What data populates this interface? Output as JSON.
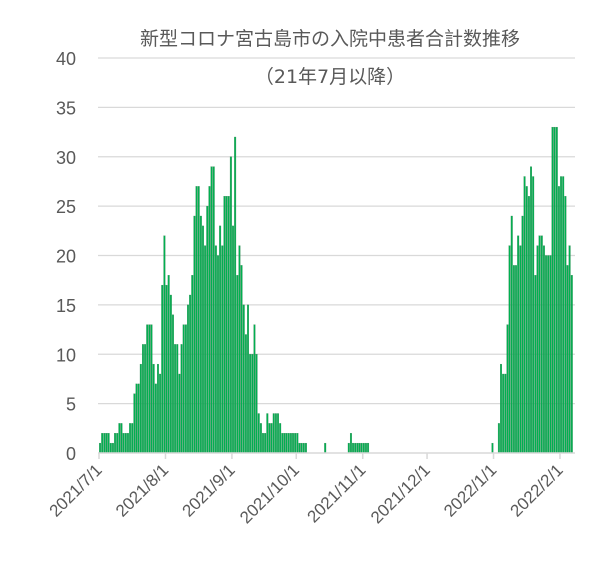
{
  "chart_data": {
    "type": "bar",
    "title": "新型コロナ宮古島市の入院中患者合計数推移",
    "subtitle": "（21年7月以降）",
    "xlabel": "",
    "ylabel": "",
    "ylim": [
      0,
      40
    ],
    "yticks": [
      0,
      5,
      10,
      15,
      20,
      25,
      30,
      35,
      40
    ],
    "xlim": [
      "2021-07-01",
      "2022-02-07"
    ],
    "xticks": [
      {
        "date": "2021-07-01",
        "label": "2021/7/1"
      },
      {
        "date": "2021-08-01",
        "label": "2021/8/1"
      },
      {
        "date": "2021-09-01",
        "label": "2021/9/1"
      },
      {
        "date": "2021-10-01",
        "label": "2021/10/1"
      },
      {
        "date": "2021-11-01",
        "label": "2021/11/1"
      },
      {
        "date": "2021-12-01",
        "label": "2021/12/1"
      },
      {
        "date": "2022-01-01",
        "label": "2022/1/1"
      },
      {
        "date": "2022-02-01",
        "label": "2022/2/1"
      }
    ],
    "grid": true,
    "bar_color": "#00b050",
    "months": [
      {
        "month": "2021-07",
        "values": [
          1,
          2,
          2,
          2,
          2,
          1,
          1,
          2,
          2,
          3,
          3,
          2,
          2,
          2,
          3,
          3,
          6,
          7,
          7,
          9,
          11,
          11,
          13,
          13,
          13,
          9,
          7,
          9,
          8,
          17,
          22
        ]
      },
      {
        "month": "2021-08",
        "values": [
          17,
          18,
          16,
          14,
          11,
          11,
          8,
          11,
          13,
          13,
          15,
          16,
          18,
          24,
          27,
          27,
          24,
          23,
          21,
          25,
          27,
          29,
          29,
          21,
          20,
          23,
          21,
          26,
          26,
          26,
          30
        ]
      },
      {
        "month": "2021-09",
        "values": [
          23,
          32,
          18,
          21,
          19,
          15,
          12,
          15,
          10,
          10,
          13,
          10,
          4,
          3,
          2,
          2,
          4,
          3,
          3,
          4,
          4,
          4,
          3,
          2,
          2,
          2,
          2,
          2,
          2,
          2
        ]
      },
      {
        "month": "2021-10",
        "values": [
          2,
          1,
          1,
          1,
          1,
          0,
          0,
          0,
          0,
          0,
          0,
          0,
          0,
          1,
          0,
          0,
          0,
          0,
          0,
          0,
          0,
          0,
          0,
          0,
          1,
          2,
          1,
          1,
          1,
          1,
          1
        ]
      },
      {
        "month": "2021-11",
        "values": [
          1,
          1,
          1,
          0,
          0,
          0,
          0,
          0,
          0,
          0,
          0,
          0,
          0,
          0,
          0,
          0,
          0,
          0,
          0,
          0,
          0,
          0,
          0,
          0,
          0,
          0,
          0,
          0,
          0,
          0
        ]
      },
      {
        "month": "2021-12",
        "values": [
          0,
          0,
          0,
          0,
          0,
          0,
          0,
          0,
          0,
          0,
          0,
          0,
          0,
          0,
          0,
          0,
          0,
          0,
          0,
          0,
          0,
          0,
          0,
          0,
          0,
          0,
          0,
          0,
          0,
          0,
          1
        ]
      },
      {
        "month": "2022-01",
        "values": [
          0,
          0,
          3,
          9,
          8,
          8,
          13,
          21,
          24,
          19,
          19,
          22,
          21,
          24,
          28,
          27,
          26,
          29,
          28,
          18,
          21,
          22,
          22,
          21,
          20,
          20,
          20,
          33,
          33,
          33,
          27
        ]
      },
      {
        "month": "2022-02",
        "values": [
          28,
          28,
          26,
          19,
          21,
          18
        ]
      }
    ]
  }
}
